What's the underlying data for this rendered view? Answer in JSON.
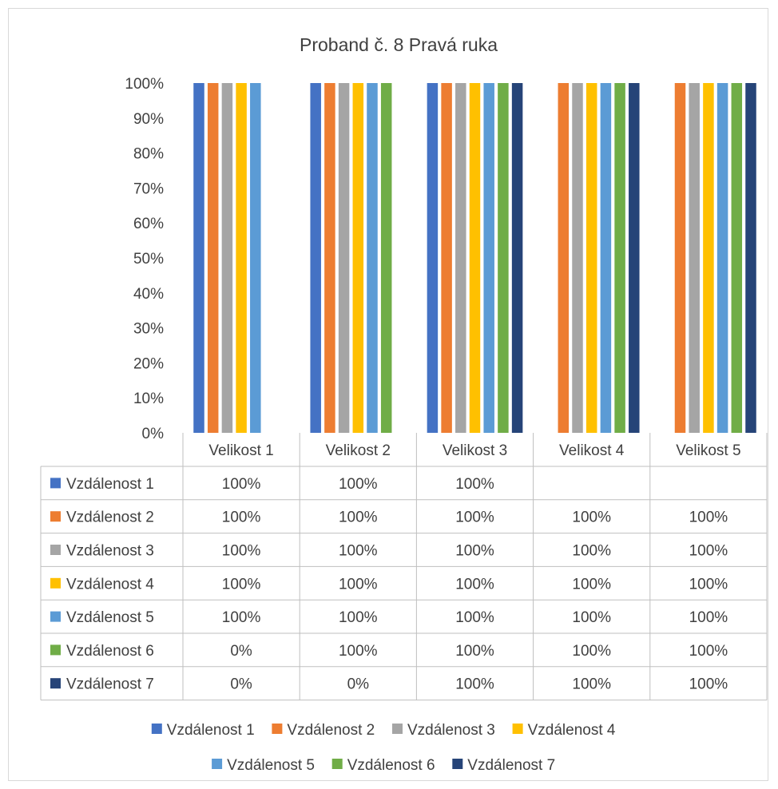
{
  "chart_data": {
    "type": "bar",
    "title": "Proband č. 8 Pravá ruka",
    "categories": [
      "Velikost 1",
      "Velikost 2",
      "Velikost 3",
      "Velikost 4",
      "Velikost 5"
    ],
    "y_ticks": [
      "0%",
      "10%",
      "20%",
      "30%",
      "40%",
      "50%",
      "60%",
      "70%",
      "80%",
      "90%",
      "100%"
    ],
    "ylim": [
      0,
      100
    ],
    "grid": false,
    "legend_position": "bottom",
    "series": [
      {
        "name": "Vzdálenost 1",
        "color": "#4472C4",
        "values": [
          100,
          100,
          100,
          null,
          null
        ],
        "labels": [
          "100%",
          "100%",
          "100%",
          "",
          ""
        ]
      },
      {
        "name": "Vzdálenost 2",
        "color": "#ED7D31",
        "values": [
          100,
          100,
          100,
          100,
          100
        ],
        "labels": [
          "100%",
          "100%",
          "100%",
          "100%",
          "100%"
        ]
      },
      {
        "name": "Vzdálenost 3",
        "color": "#A5A5A5",
        "values": [
          100,
          100,
          100,
          100,
          100
        ],
        "labels": [
          "100%",
          "100%",
          "100%",
          "100%",
          "100%"
        ]
      },
      {
        "name": "Vzdálenost 4",
        "color": "#FFC000",
        "values": [
          100,
          100,
          100,
          100,
          100
        ],
        "labels": [
          "100%",
          "100%",
          "100%",
          "100%",
          "100%"
        ]
      },
      {
        "name": "Vzdálenost 5",
        "color": "#5B9BD5",
        "values": [
          100,
          100,
          100,
          100,
          100
        ],
        "labels": [
          "100%",
          "100%",
          "100%",
          "100%",
          "100%"
        ]
      },
      {
        "name": "Vzdálenost 6",
        "color": "#70AD47",
        "values": [
          0,
          100,
          100,
          100,
          100
        ],
        "labels": [
          "0%",
          "100%",
          "100%",
          "100%",
          "100%"
        ]
      },
      {
        "name": "Vzdálenost 7",
        "color": "#264478",
        "values": [
          0,
          0,
          100,
          100,
          100
        ],
        "labels": [
          "0%",
          "0%",
          "100%",
          "100%",
          "100%"
        ]
      }
    ]
  }
}
